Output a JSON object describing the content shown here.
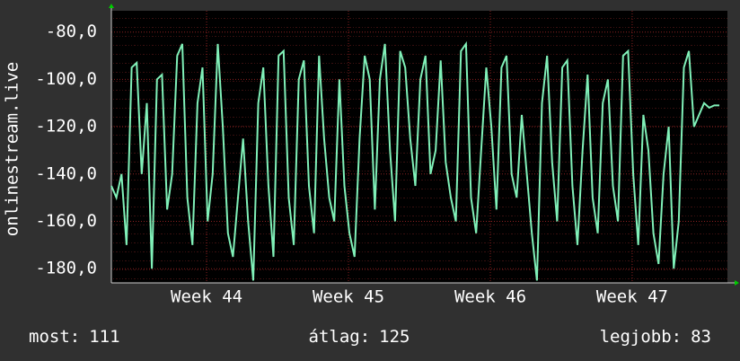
{
  "chart_data": {
    "type": "line",
    "ylabel": "onlinestream.live",
    "x": [
      0,
      0.25,
      0.5,
      0.75,
      1,
      1.25,
      1.5,
      1.75,
      2,
      2.25,
      2.5,
      2.75,
      3,
      3.25,
      3.5,
      3.75,
      4,
      4.25,
      4.5,
      4.75,
      5,
      5.25,
      5.5,
      5.75,
      6,
      6.25,
      6.5,
      6.75,
      7,
      7.25,
      7.5,
      7.75,
      8,
      8.25,
      8.5,
      8.75,
      9,
      9.25,
      9.5,
      9.75,
      10,
      10.25,
      10.5,
      10.75,
      11,
      11.25,
      11.5,
      11.75,
      12,
      12.25,
      12.5,
      12.75,
      13,
      13.25,
      13.5,
      13.75,
      14,
      14.25,
      14.5,
      14.75,
      15,
      15.25,
      15.5,
      15.75,
      16,
      16.25,
      16.5,
      16.75,
      17,
      17.25,
      17.5,
      17.75,
      18,
      18.25,
      18.5,
      18.75,
      19,
      19.25,
      19.5,
      19.75,
      20,
      20.25,
      20.5,
      20.75,
      21,
      21.25,
      21.5,
      21.75,
      22,
      22.25,
      22.5,
      22.75,
      23,
      23.25,
      23.5,
      23.75,
      24,
      24.25,
      24.5,
      24.75,
      25,
      25.25,
      25.5,
      25.75,
      26,
      26.25,
      26.5,
      26.75,
      27,
      27.25,
      27.5,
      27.75,
      28,
      28.25,
      28.5,
      28.75,
      29,
      29.25,
      29.5,
      29.75,
      30
    ],
    "series": [
      {
        "color": "#80f0b8",
        "values": [
          -145,
          -150,
          -140,
          -170,
          -95,
          -93,
          -140,
          -110,
          -180,
          -100,
          -98,
          -155,
          -140,
          -90,
          -85,
          -150,
          -170,
          -110,
          -95,
          -160,
          -140,
          -85,
          -120,
          -165,
          -175,
          -150,
          -125,
          -160,
          -185,
          -110,
          -95,
          -145,
          -175,
          -90,
          -88,
          -150,
          -170,
          -100,
          -92,
          -145,
          -165,
          -90,
          -125,
          -150,
          -160,
          -100,
          -145,
          -165,
          -175,
          -125,
          -90,
          -100,
          -155,
          -100,
          -85,
          -130,
          -160,
          -88,
          -95,
          -125,
          -145,
          -100,
          -90,
          -140,
          -130,
          -92,
          -135,
          -150,
          -160,
          -88,
          -85,
          -150,
          -165,
          -130,
          -95,
          -120,
          -155,
          -95,
          -90,
          -140,
          -150,
          -115,
          -140,
          -165,
          -185,
          -110,
          -90,
          -135,
          -160,
          -95,
          -92,
          -145,
          -170,
          -130,
          -98,
          -150,
          -165,
          -110,
          -100,
          -145,
          -160,
          -90,
          -88,
          -140,
          -170,
          -115,
          -130,
          -165,
          -178,
          -140,
          -120,
          -180,
          -160,
          -95,
          -88,
          -120,
          -115,
          -110,
          -112,
          -111,
          -111
        ]
      }
    ],
    "xlim": [
      0,
      30.4
    ],
    "xticks": [
      {
        "value": 4.7,
        "label": "Week 44"
      },
      {
        "value": 11.7,
        "label": "Week 45"
      },
      {
        "value": 18.7,
        "label": "Week 46"
      },
      {
        "value": 25.7,
        "label": "Week 47"
      }
    ],
    "ylim": [
      -186,
      -71
    ],
    "yticks": [
      {
        "value": -80,
        "label": "-80,0"
      },
      {
        "value": -100,
        "label": "-100,0"
      },
      {
        "value": -120,
        "label": "-120,0"
      },
      {
        "value": -140,
        "label": "-140,0"
      },
      {
        "value": -160,
        "label": "-160,0"
      },
      {
        "value": -180,
        "label": "-180,0"
      }
    ],
    "grid": true,
    "stats": [
      {
        "label": "most:",
        "value": 111
      },
      {
        "label": "átlag:",
        "value": 125
      },
      {
        "label": "legjobb:",
        "value": 83
      }
    ]
  }
}
